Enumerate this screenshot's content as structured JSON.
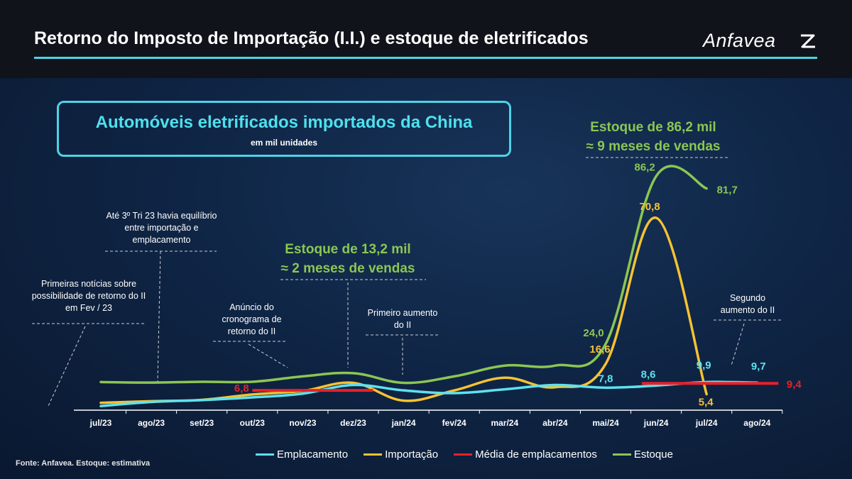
{
  "header": {
    "title": "Retorno do Imposto de Importação (I.I.) e estoque de eletrificados",
    "logo_text": "Anfavea"
  },
  "subtitle_box": {
    "title": "Automóveis eletrificados importados da China",
    "unit": "em mil unidades"
  },
  "callouts": {
    "equilibrio": "Até 3º Tri 23 havia equilíbrio entre importação e emplacamento",
    "noticias": "Primeiras notícias sobre possibilidade de retorno do II em Fev / 23",
    "anuncio": "Anúncio do cronograma de retorno do II",
    "primeiro": "Primeiro aumento do II",
    "segundo": "Segundo aumento do II",
    "estoque1_line1": "Estoque de 13,2 mil",
    "estoque1_line2": "≈ 2 meses de vendas",
    "estoque2_line1": "Estoque de 86,2 mil",
    "estoque2_line2": "≈ 9 meses de vendas"
  },
  "source_note": "Fonte: Anfavea.   Estoque: estimativa",
  "colors": {
    "emplacamento": "#5fe1ee",
    "importacao": "#f5c233",
    "media": "#e8202a",
    "estoque": "#8bc653"
  },
  "chart_data": {
    "type": "line",
    "categories": [
      "jul/23",
      "ago/23",
      "set/23",
      "out/23",
      "nov/23",
      "dez/23",
      "jan/24",
      "fev/24",
      "mar/24",
      "abr/24",
      "mai/24",
      "jun/24",
      "jul/24",
      "ago/24"
    ],
    "ylim": [
      0,
      90
    ],
    "grid": false,
    "legend_position": "bottom",
    "series": [
      {
        "name": "Emplacamento",
        "values": [
          1.0,
          2.5,
          3.2,
          4.2,
          5.6,
          8.8,
          6.8,
          5.8,
          7.2,
          8.8,
          7.8,
          8.6,
          9.9,
          9.7
        ],
        "labels": {
          "10": "7,8",
          "11": "8,6",
          "12": "9,9",
          "13": "9,7"
        }
      },
      {
        "name": "Importação",
        "values": [
          2.2,
          2.8,
          3.3,
          5.3,
          6.6,
          9.6,
          3.0,
          6.8,
          11.5,
          8.0,
          16.6,
          70.8,
          5.4,
          null
        ],
        "labels": {
          "10": "16,6",
          "11": "70,8",
          "12": "5,4"
        }
      },
      {
        "name": "Média de emplacamentos",
        "segments": [
          {
            "from": 3,
            "to": 5,
            "value": 6.8
          },
          {
            "from": 11,
            "to": 13,
            "value": 9.4
          }
        ],
        "labels": [
          "6,8",
          "9,4"
        ]
      },
      {
        "name": "Estoque",
        "values": [
          9.9,
          9.7,
          10.0,
          10.0,
          12.0,
          13.2,
          9.6,
          12.0,
          16.0,
          16.0,
          24.0,
          86.2,
          81.7,
          null
        ],
        "labels": {
          "10": "24,0",
          "11": "86,2",
          "12": "81,7"
        }
      }
    ]
  }
}
